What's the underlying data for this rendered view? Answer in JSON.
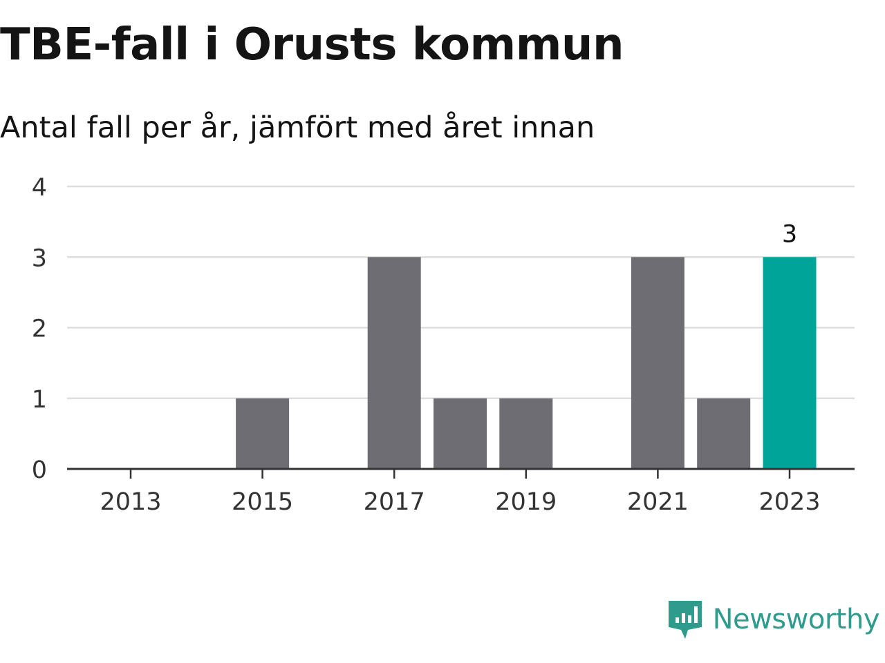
{
  "header": {
    "title": "TBE-fall i Orusts kommun",
    "subtitle": "Antal fall per år, jämfört med året innan"
  },
  "brand": {
    "name": "Newsworthy",
    "icon": "newsworthy-logo-icon",
    "color": "#2e9b8c"
  },
  "colors": {
    "bar": "#6d6d73",
    "highlight": "#00a499",
    "grid": "#dedede",
    "axis": "#333333",
    "text": "#333333"
  },
  "chart_data": {
    "type": "bar",
    "categories": [
      "2013",
      "2014",
      "2015",
      "2016",
      "2017",
      "2018",
      "2019",
      "2020",
      "2021",
      "2022",
      "2023"
    ],
    "values": [
      0,
      0,
      1,
      0,
      3,
      1,
      1,
      0,
      3,
      1,
      3
    ],
    "x_tick_labels": [
      "2013",
      "2015",
      "2017",
      "2019",
      "2021",
      "2023"
    ],
    "y_ticks": [
      0,
      1,
      2,
      3,
      4
    ],
    "ylim": [
      0,
      4
    ],
    "highlight_category": "2023",
    "data_labels": [
      {
        "category": "2023",
        "text": "3"
      }
    ],
    "grid": true,
    "legend": "none"
  }
}
